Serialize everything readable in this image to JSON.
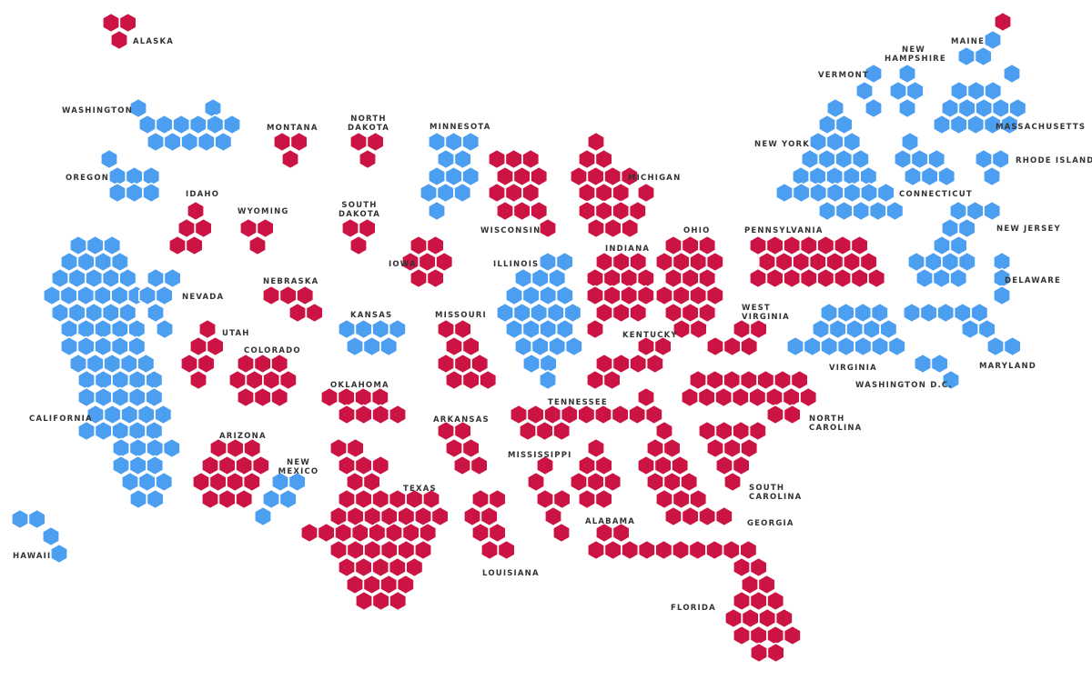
{
  "colors": {
    "republican": "#cc1444",
    "democrat": "#4c9ef0"
  },
  "states": [
    {
      "id": "AK",
      "name": "ALASKA",
      "party": "republican",
      "ev": 3
    },
    {
      "id": "WA",
      "name": "WASHINGTON",
      "party": "democrat",
      "ev": 12
    },
    {
      "id": "OR",
      "name": "OREGON",
      "party": "democrat",
      "ev": 7
    },
    {
      "id": "CA",
      "name": "CALIFORNIA",
      "party": "democrat",
      "ev": 55
    },
    {
      "id": "NV",
      "name": "NEVADA",
      "party": "democrat",
      "ev": 6
    },
    {
      "id": "ID",
      "name": "IDAHO",
      "party": "republican",
      "ev": 4
    },
    {
      "id": "MT",
      "name": "MONTANA",
      "party": "republican",
      "ev": 3
    },
    {
      "id": "WY",
      "name": "WYOMING",
      "party": "republican",
      "ev": 3
    },
    {
      "id": "UT",
      "name": "UTAH",
      "party": "republican",
      "ev": 6
    },
    {
      "id": "CO",
      "name": "COLORADO",
      "party": "republican",
      "ev": 9
    },
    {
      "id": "AZ",
      "name": "ARIZONA",
      "party": "republican",
      "ev": 11
    },
    {
      "id": "NM",
      "name": "NEW MEXICO",
      "party": "democrat",
      "ev": 5
    },
    {
      "id": "ND",
      "name": "NORTH DAKOTA",
      "party": "republican",
      "ev": 3
    },
    {
      "id": "SD",
      "name": "SOUTH DAKOTA",
      "party": "republican",
      "ev": 3
    },
    {
      "id": "NE",
      "name": "NEBRASKA",
      "party": "republican",
      "ev": 5
    },
    {
      "id": "KS",
      "name": "KANSAS",
      "party": "democrat",
      "ev": 6
    },
    {
      "id": "OK",
      "name": "OKLAHOMA",
      "party": "republican",
      "ev": 7
    },
    {
      "id": "TX",
      "name": "TEXAS",
      "party": "republican",
      "ev": 38
    },
    {
      "id": "MN",
      "name": "MINNESOTA",
      "party": "democrat",
      "ev": 10
    },
    {
      "id": "IA",
      "name": "IOWA",
      "party": "republican",
      "ev": 6
    },
    {
      "id": "MO",
      "name": "MISSOURI",
      "party": "republican",
      "ev": 10
    },
    {
      "id": "AR",
      "name": "ARKANSAS",
      "party": "republican",
      "ev": 6
    },
    {
      "id": "LA",
      "name": "LOUISIANA",
      "party": "republican",
      "ev": 8
    },
    {
      "id": "WI",
      "name": "WISCONSIN",
      "party": "republican",
      "ev": 10
    },
    {
      "id": "IL",
      "name": "ILLINOIS",
      "party": "democrat",
      "ev": 20
    },
    {
      "id": "MI",
      "name": "MICHIGAN",
      "party": "republican",
      "ev": 16
    },
    {
      "id": "IN",
      "name": "INDIANA",
      "party": "republican",
      "ev": 11
    },
    {
      "id": "OH",
      "name": "OHIO",
      "party": "republican",
      "ev": 18
    },
    {
      "id": "KY",
      "name": "KENTUCKY",
      "party": "republican",
      "ev": 8
    },
    {
      "id": "TN",
      "name": "TENNESSEE",
      "party": "republican",
      "ev": 11
    },
    {
      "id": "MS",
      "name": "MISSISSIPPI",
      "party": "republican",
      "ev": 6
    },
    {
      "id": "AL",
      "name": "ALABAMA",
      "party": "republican",
      "ev": 9
    },
    {
      "id": "GA",
      "name": "GEORGIA",
      "party": "republican",
      "ev": 16
    },
    {
      "id": "FL",
      "name": "FLORIDA",
      "party": "republican",
      "ev": 29
    },
    {
      "id": "SC",
      "name": "SOUTH CAROLINA",
      "party": "republican",
      "ev": 9
    },
    {
      "id": "NC",
      "name": "NORTH CAROLINA",
      "party": "republican",
      "ev": 15
    },
    {
      "id": "VA",
      "name": "VIRGINIA",
      "party": "democrat",
      "ev": 13
    },
    {
      "id": "WV",
      "name": "WEST VIRGINIA",
      "party": "republican",
      "ev": 5
    },
    {
      "id": "PA",
      "name": "PENNSYLVANIA",
      "party": "republican",
      "ev": 20
    },
    {
      "id": "NY",
      "name": "NEW YORK",
      "party": "democrat",
      "ev": 29
    },
    {
      "id": "VT",
      "name": "VERMONT",
      "party": "democrat",
      "ev": 3
    },
    {
      "id": "NH",
      "name": "NEW HAMPSHIRE",
      "party": "democrat",
      "ev": 4
    },
    {
      "id": "ME",
      "name": "MAINE",
      "party": "democrat",
      "ev": 4,
      "split": "1 republican, 3 democrat"
    },
    {
      "id": "MA",
      "name": "MASSACHUSETTS",
      "party": "democrat",
      "ev": 11
    },
    {
      "id": "RI",
      "name": "RHODE ISLAND",
      "party": "democrat",
      "ev": 4
    },
    {
      "id": "CT",
      "name": "CONNECTICUT",
      "party": "democrat",
      "ev": 7
    },
    {
      "id": "NJ",
      "name": "NEW JERSEY",
      "party": "democrat",
      "ev": 14
    },
    {
      "id": "DE",
      "name": "DELAWARE",
      "party": "democrat",
      "ev": 3
    },
    {
      "id": "MD",
      "name": "MARYLAND",
      "party": "democrat",
      "ev": 10
    },
    {
      "id": "DC",
      "name": "WASHINGTON D.C.",
      "party": "democrat",
      "ev": 3
    },
    {
      "id": "HI",
      "name": "HAWAII",
      "party": "democrat",
      "ev": 4
    }
  ]
}
